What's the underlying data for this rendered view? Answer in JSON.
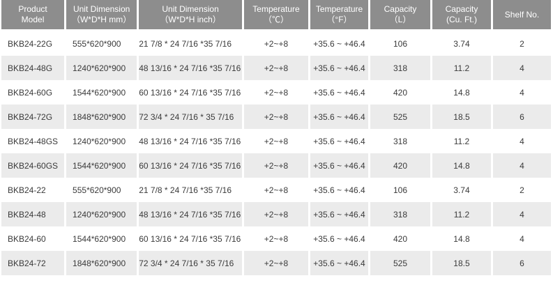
{
  "headers": [
    {
      "line1": "Product",
      "line2": "Model"
    },
    {
      "line1": "Unit Dimension",
      "line2": "（W*D*H mm）"
    },
    {
      "line1": "Unit Dimension",
      "line2": "（W*D*H inch）"
    },
    {
      "line1": "Temperature",
      "line2": "（℃）"
    },
    {
      "line1": "Temperature",
      "line2": "（°F）"
    },
    {
      "line1": "Capacity",
      "line2": "（L）"
    },
    {
      "line1": "Capacity",
      "line2": "(Cu. Ft.)"
    },
    {
      "line1": "Shelf No.",
      "line2": ""
    }
  ],
  "rows": [
    {
      "model": "BKB24-22G",
      "mm": "555*620*900",
      "inch": "21 7/8 * 24 7/16 *35 7/16",
      "tc": "+2~+8",
      "tf": "+35.6 ~ +46.4",
      "cap_l": "106",
      "cap_cf": "3.74",
      "shelf": "2"
    },
    {
      "model": "BKB24-48G",
      "mm": "1240*620*900",
      "inch": "48 13/16 * 24 7/16 *35 7/16",
      "tc": "+2~+8",
      "tf": "+35.6 ~ +46.4",
      "cap_l": "318",
      "cap_cf": "11.2",
      "shelf": "4"
    },
    {
      "model": "BKB24-60G",
      "mm": "1544*620*900",
      "inch": "60 13/16 * 24 7/16 *35 7/16",
      "tc": "+2~+8",
      "tf": "+35.6 ~ +46.4",
      "cap_l": "420",
      "cap_cf": "14.8",
      "shelf": "4"
    },
    {
      "model": "BKB24-72G",
      "mm": "1848*620*900",
      "inch": "72 3/4 * 24 7/16 * 35 7/16",
      "tc": "+2~+8",
      "tf": "+35.6 ~ +46.4",
      "cap_l": "525",
      "cap_cf": "18.5",
      "shelf": "6"
    },
    {
      "model": "BKB24-48GS",
      "mm": "1240*620*900",
      "inch": "48 13/16 * 24 7/16 *35 7/16",
      "tc": "+2~+8",
      "tf": "+35.6 ~ +46.4",
      "cap_l": "318",
      "cap_cf": "11.2",
      "shelf": "4"
    },
    {
      "model": "BKB24-60GS",
      "mm": "1544*620*900",
      "inch": "60 13/16 * 24 7/16 *35 7/16",
      "tc": "+2~+8",
      "tf": "+35.6 ~ +46.4",
      "cap_l": "420",
      "cap_cf": "14.8",
      "shelf": "4"
    },
    {
      "model": "BKB24-22",
      "mm": "555*620*900",
      "inch": "21 7/8 * 24 7/16 *35 7/16",
      "tc": "+2~+8",
      "tf": "+35.6 ~ +46.4",
      "cap_l": "106",
      "cap_cf": "3.74",
      "shelf": "2"
    },
    {
      "model": "BKB24-48",
      "mm": "1240*620*900",
      "inch": "48 13/16 * 24 7/16 *35 7/16",
      "tc": "+2~+8",
      "tf": "+35.6 ~ +46.4",
      "cap_l": "318",
      "cap_cf": "11.2",
      "shelf": "4"
    },
    {
      "model": "BKB24-60",
      "mm": "1544*620*900",
      "inch": "60 13/16 * 24 7/16 *35 7/16",
      "tc": "+2~+8",
      "tf": "+35.6 ~ +46.4",
      "cap_l": "420",
      "cap_cf": "14.8",
      "shelf": "4"
    },
    {
      "model": "BKB24-72",
      "mm": "1848*620*900",
      "inch": "72 3/4 * 24 7/16 * 35 7/16",
      "tc": "+2~+8",
      "tf": "+35.6 ~ +46.4",
      "cap_l": "525",
      "cap_cf": "18.5",
      "shelf": "6"
    }
  ]
}
